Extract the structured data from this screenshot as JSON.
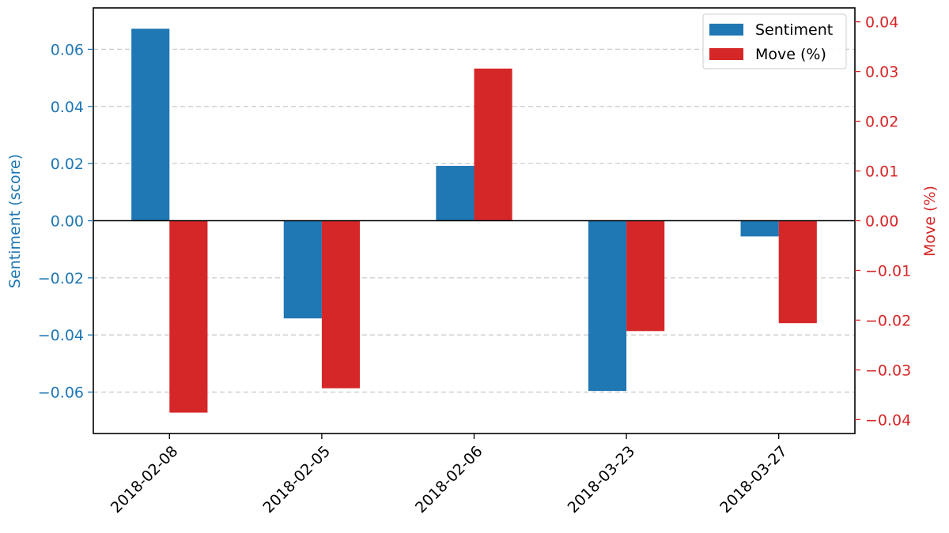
{
  "chart_data": {
    "type": "bar",
    "categories": [
      "2018-02-08",
      "2018-02-05",
      "2018-02-06",
      "2018-03-23",
      "2018-03-27"
    ],
    "series": [
      {
        "name": "Sentiment",
        "axis": "left",
        "color": "#1f77b4",
        "values": [
          0.0672,
          -0.0342,
          0.0192,
          -0.0596,
          -0.0055
        ]
      },
      {
        "name": "Move (%)",
        "axis": "right",
        "color": "#d62728",
        "values": [
          -0.0386,
          -0.0337,
          0.0306,
          -0.0222,
          -0.0206
        ]
      }
    ],
    "ylabel_left": "Sentiment (score)",
    "ylabel_right": "Move (%)",
    "ylim_left": [
      -0.0745,
      0.0745
    ],
    "ylim_right": [
      -0.0428,
      0.0428
    ],
    "yticks_left": [
      -0.06,
      -0.04,
      -0.02,
      0.0,
      0.02,
      0.04,
      0.06
    ],
    "ytick_labels_left": [
      "−0.06",
      "−0.04",
      "−0.02",
      "0.00",
      "0.02",
      "0.04",
      "0.06"
    ],
    "yticks_right": [
      -0.04,
      -0.03,
      -0.02,
      -0.01,
      0.0,
      0.01,
      0.02,
      0.03,
      0.04
    ],
    "ytick_labels_right": [
      "−0.04",
      "−0.03",
      "−0.02",
      "−0.01",
      "0.00",
      "0.01",
      "0.02",
      "0.03",
      "0.04"
    ],
    "grid": "horizontal-dashed",
    "legend": "top-right",
    "colors": {
      "left_axis": "#1f77b4",
      "right_axis": "#d62728",
      "grid": "#cccccc",
      "frame": "#000000"
    }
  }
}
